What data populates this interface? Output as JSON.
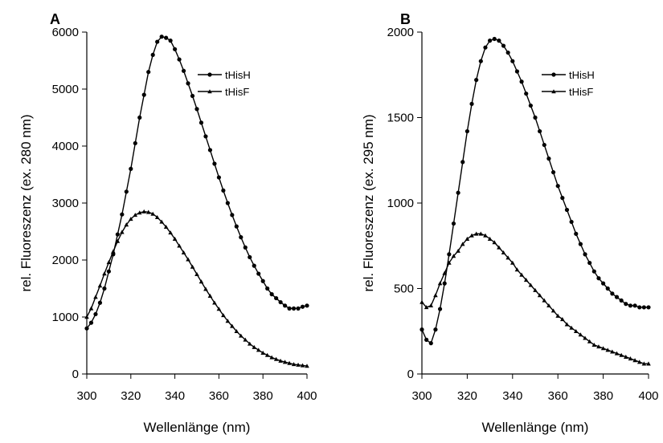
{
  "chart_data": [
    {
      "type": "line",
      "panel_label": "A",
      "xlabel": "Wellenlänge (nm)",
      "ylabel": "rel. Fluoreszenz (ex. 280 nm)",
      "xlim": [
        300,
        400
      ],
      "ylim": [
        0,
        6000
      ],
      "xticks": [
        300,
        320,
        340,
        360,
        380,
        400
      ],
      "yticks": [
        0,
        1000,
        2000,
        3000,
        4000,
        5000,
        6000
      ],
      "grid": false,
      "legend_position": "top-right",
      "x_start": 300,
      "x_step": 2,
      "series": [
        {
          "name": "tHisH",
          "marker": "circle",
          "values": [
            800,
            900,
            1050,
            1250,
            1500,
            1800,
            2100,
            2450,
            2800,
            3200,
            3600,
            4050,
            4500,
            4900,
            5300,
            5600,
            5830,
            5920,
            5900,
            5850,
            5700,
            5520,
            5320,
            5100,
            4880,
            4650,
            4410,
            4170,
            3930,
            3690,
            3450,
            3220,
            3000,
            2790,
            2590,
            2400,
            2220,
            2050,
            1900,
            1760,
            1630,
            1500,
            1400,
            1330,
            1260,
            1200,
            1150,
            1150,
            1150,
            1180,
            1200
          ]
        },
        {
          "name": "tHisF",
          "marker": "triangle",
          "values": [
            1000,
            1150,
            1350,
            1550,
            1760,
            1960,
            2150,
            2330,
            2490,
            2620,
            2720,
            2790,
            2830,
            2850,
            2840,
            2810,
            2750,
            2670,
            2580,
            2480,
            2370,
            2250,
            2130,
            2010,
            1880,
            1750,
            1620,
            1490,
            1370,
            1250,
            1140,
            1030,
            930,
            840,
            750,
            670,
            600,
            530,
            470,
            420,
            370,
            330,
            290,
            260,
            230,
            210,
            190,
            170,
            160,
            150,
            140
          ]
        }
      ]
    },
    {
      "type": "line",
      "panel_label": "B",
      "xlabel": "Wellenlänge (nm)",
      "ylabel": "rel. Fluoreszenz (ex. 295 nm)",
      "xlim": [
        300,
        400
      ],
      "ylim": [
        0,
        2000
      ],
      "xticks": [
        300,
        320,
        340,
        360,
        380,
        400
      ],
      "yticks": [
        0,
        500,
        1000,
        1500,
        2000
      ],
      "grid": false,
      "legend_position": "top-right",
      "x_start": 300,
      "x_step": 2,
      "series": [
        {
          "name": "tHisH",
          "marker": "circle",
          "values": [
            260,
            200,
            180,
            260,
            380,
            530,
            700,
            880,
            1060,
            1240,
            1420,
            1580,
            1720,
            1830,
            1910,
            1950,
            1960,
            1950,
            1920,
            1880,
            1830,
            1770,
            1710,
            1640,
            1570,
            1500,
            1420,
            1340,
            1260,
            1180,
            1100,
            1030,
            960,
            890,
            820,
            760,
            700,
            650,
            600,
            560,
            530,
            500,
            470,
            450,
            430,
            410,
            400,
            400,
            390,
            390,
            390
          ]
        },
        {
          "name": "tHisF",
          "marker": "triangle",
          "values": [
            420,
            390,
            400,
            460,
            530,
            590,
            650,
            690,
            720,
            760,
            790,
            810,
            820,
            820,
            810,
            790,
            770,
            740,
            710,
            680,
            650,
            610,
            580,
            550,
            520,
            490,
            460,
            430,
            400,
            370,
            340,
            320,
            290,
            270,
            250,
            230,
            210,
            190,
            170,
            160,
            150,
            140,
            130,
            120,
            110,
            100,
            90,
            80,
            70,
            60,
            60
          ]
        }
      ]
    }
  ]
}
